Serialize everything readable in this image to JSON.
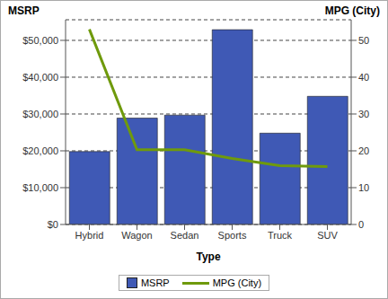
{
  "chart_data": {
    "type": "bar",
    "x_label": "Type",
    "y_label": "MSRP",
    "y2_label": "MPG (City)",
    "categories": [
      "Hybrid",
      "Wagon",
      "Sedan",
      "Sports",
      "Truck",
      "SUV"
    ],
    "series": [
      {
        "name": "MSRP",
        "type": "bar",
        "color": "#3f59b5",
        "values": [
          19800,
          28900,
          29700,
          52900,
          24800,
          34800
        ]
      },
      {
        "name": "MPG (City)",
        "type": "line",
        "axis": "y2",
        "color": "#6f9a0c",
        "values": [
          53,
          20.3,
          20.3,
          17.9,
          16,
          15.7
        ]
      }
    ],
    "ylim": [
      0,
      55600
    ],
    "yticks": [
      {
        "value": 0,
        "label": "$0"
      },
      {
        "value": 10000,
        "label": "$10,000"
      },
      {
        "value": 20000,
        "label": "$20,000"
      },
      {
        "value": 30000,
        "label": "$30,000"
      },
      {
        "value": 40000,
        "label": "$40,000"
      },
      {
        "value": 50000,
        "label": "$50,000"
      }
    ],
    "y2lim": [
      0,
      55.6
    ],
    "y2ticks": [
      0,
      10,
      20,
      30,
      40,
      50
    ],
    "grid": true,
    "legend": "bottom"
  }
}
